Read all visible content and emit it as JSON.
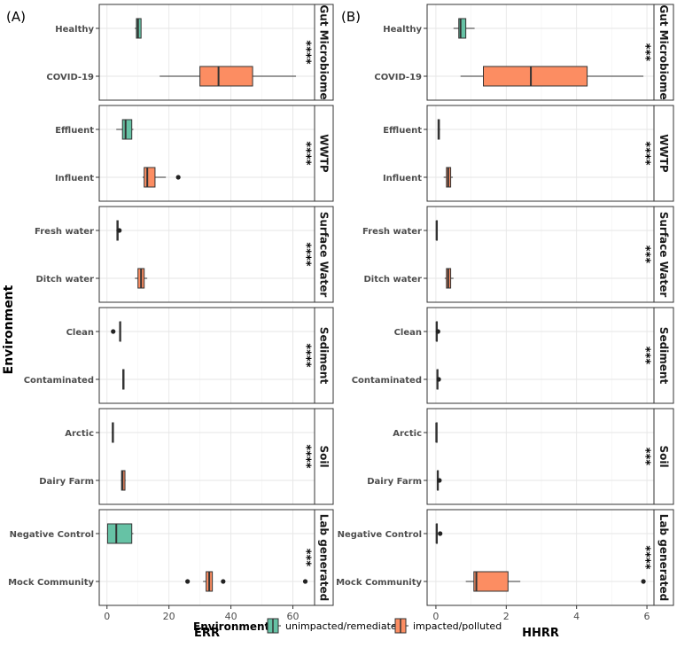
{
  "chart_data": {
    "type": "boxplot",
    "layout": "two faceted horizontal box-plot panels, environments stacked vertically",
    "y_axis_title": "Environment",
    "colors": {
      "unimpacted": "#66c2a5",
      "impacted": "#fc8d62"
    },
    "legend": {
      "title": "Environment",
      "items": [
        {
          "key": "unimpacted",
          "label": "unimpacted/remediated",
          "color": "#66c2a5"
        },
        {
          "key": "impacted",
          "label": "impacted/polluted",
          "color": "#fc8d62"
        }
      ]
    },
    "panels": [
      {
        "label": "(A)",
        "xlabel": "ERR",
        "xlim": [
          -2.5,
          67
        ],
        "xticks": [
          0,
          20,
          40,
          60
        ],
        "xtick_labels": [
          "0",
          "20",
          "40",
          "60"
        ],
        "facets": [
          {
            "strip": "Gut Microbiome",
            "significance": "****",
            "groups": [
              {
                "category": "Healthy",
                "status": "unimpacted",
                "whisker_low": 9,
                "q1": 9.5,
                "median": 10,
                "q3": 11,
                "whisker_high": 11,
                "outliers": []
              },
              {
                "category": "COVID-19",
                "status": "impacted",
                "whisker_low": 17,
                "q1": 30,
                "median": 36,
                "q3": 47,
                "whisker_high": 61,
                "outliers": []
              }
            ]
          },
          {
            "strip": "WWTP",
            "significance": "****",
            "groups": [
              {
                "category": "Effluent",
                "status": "unimpacted",
                "whisker_low": 3,
                "q1": 5,
                "median": 6,
                "q3": 8,
                "whisker_high": 8.5,
                "outliers": []
              },
              {
                "category": "Influent",
                "status": "impacted",
                "whisker_low": 11.5,
                "q1": 12,
                "median": 13,
                "q3": 15.5,
                "whisker_high": 19,
                "outliers": [
                  23
                ]
              }
            ]
          },
          {
            "strip": "Surface Water",
            "significance": "****",
            "groups": [
              {
                "category": "Fresh water",
                "status": "unimpacted",
                "whisker_low": 3,
                "q1": 3.2,
                "median": 3.4,
                "q3": 3.6,
                "whisker_high": 3.8,
                "outliers": [
                  4
                ]
              },
              {
                "category": "Ditch water",
                "status": "impacted",
                "whisker_low": 9,
                "q1": 10,
                "median": 11,
                "q3": 12,
                "whisker_high": 13,
                "outliers": []
              }
            ]
          },
          {
            "strip": "Sediment",
            "significance": "****",
            "groups": [
              {
                "category": "Clean",
                "status": "unimpacted",
                "whisker_low": 4,
                "q1": 4.1,
                "median": 4.2,
                "q3": 4.3,
                "whisker_high": 4.4,
                "outliers": [
                  2
                ]
              },
              {
                "category": "Contaminated",
                "status": "impacted",
                "whisker_low": 5,
                "q1": 5.1,
                "median": 5.3,
                "q3": 5.5,
                "whisker_high": 5.6,
                "outliers": []
              }
            ]
          },
          {
            "strip": "Soil",
            "significance": "****",
            "groups": [
              {
                "category": "Arctic",
                "status": "unimpacted",
                "whisker_low": 1.5,
                "q1": 1.7,
                "median": 1.9,
                "q3": 2.1,
                "whisker_high": 2.2,
                "outliers": []
              },
              {
                "category": "Dairy Farm",
                "status": "impacted",
                "whisker_low": 4.5,
                "q1": 4.7,
                "median": 5,
                "q3": 5.8,
                "whisker_high": 6,
                "outliers": []
              }
            ]
          },
          {
            "strip": "Lab generated",
            "significance": "***",
            "groups": [
              {
                "category": "Negative Control",
                "status": "unimpacted",
                "whisker_low": 0,
                "q1": 0.2,
                "median": 3,
                "q3": 8,
                "whisker_high": 8.5,
                "outliers": []
              },
              {
                "category": "Mock Community",
                "status": "impacted",
                "whisker_low": 31,
                "q1": 32,
                "median": 33,
                "q3": 34,
                "whisker_high": 34,
                "outliers": [
                  26,
                  37.5,
                  64
                ]
              }
            ]
          }
        ]
      },
      {
        "label": "(B)",
        "xlabel": "HHRR",
        "xlim": [
          -0.25,
          6.2
        ],
        "xticks": [
          0,
          2,
          4,
          6
        ],
        "xtick_labels": [
          "0",
          "2",
          "4",
          "6"
        ],
        "facets": [
          {
            "strip": "Gut Microbiome",
            "significance": "***",
            "groups": [
              {
                "category": "Healthy",
                "status": "unimpacted",
                "whisker_low": 0.5,
                "q1": 0.65,
                "median": 0.7,
                "q3": 0.85,
                "whisker_high": 1.1,
                "outliers": []
              },
              {
                "category": "COVID-19",
                "status": "impacted",
                "whisker_low": 0.7,
                "q1": 1.35,
                "median": 2.7,
                "q3": 4.3,
                "whisker_high": 5.9,
                "outliers": []
              }
            ]
          },
          {
            "strip": "WWTP",
            "significance": "****",
            "groups": [
              {
                "category": "Effluent",
                "status": "unimpacted",
                "whisker_low": 0.05,
                "q1": 0.06,
                "median": 0.08,
                "q3": 0.1,
                "whisker_high": 0.12,
                "outliers": []
              },
              {
                "category": "Influent",
                "status": "impacted",
                "whisker_low": 0.22,
                "q1": 0.3,
                "median": 0.35,
                "q3": 0.42,
                "whisker_high": 0.48,
                "outliers": []
              }
            ]
          },
          {
            "strip": "Surface Water",
            "significance": "***",
            "groups": [
              {
                "category": "Fresh water",
                "status": "unimpacted",
                "whisker_low": 0,
                "q1": 0.01,
                "median": 0.02,
                "q3": 0.03,
                "whisker_high": 0.04,
                "outliers": []
              },
              {
                "category": "Ditch water",
                "status": "impacted",
                "whisker_low": 0.25,
                "q1": 0.3,
                "median": 0.35,
                "q3": 0.42,
                "whisker_high": 0.5,
                "outliers": []
              }
            ]
          },
          {
            "strip": "Sediment",
            "significance": "***",
            "groups": [
              {
                "category": "Clean",
                "status": "unimpacted",
                "whisker_low": 0,
                "q1": 0.01,
                "median": 0.02,
                "q3": 0.03,
                "whisker_high": 0.04,
                "outliers": [
                  0.06
                ]
              },
              {
                "category": "Contaminated",
                "status": "impacted",
                "whisker_low": 0.02,
                "q1": 0.03,
                "median": 0.04,
                "q3": 0.05,
                "whisker_high": 0.06,
                "outliers": [
                  0.08
                ]
              }
            ]
          },
          {
            "strip": "Soil",
            "significance": "***",
            "groups": [
              {
                "category": "Arctic",
                "status": "unimpacted",
                "whisker_low": 0,
                "q1": 0.005,
                "median": 0.01,
                "q3": 0.015,
                "whisker_high": 0.02,
                "outliers": []
              },
              {
                "category": "Dairy Farm",
                "status": "impacted",
                "whisker_low": 0.03,
                "q1": 0.04,
                "median": 0.05,
                "q3": 0.06,
                "whisker_high": 0.08,
                "outliers": [
                  0.1
                ]
              }
            ]
          },
          {
            "strip": "Lab generated",
            "significance": "****",
            "groups": [
              {
                "category": "Negative Control",
                "status": "unimpacted",
                "whisker_low": 0,
                "q1": 0.01,
                "median": 0.02,
                "q3": 0.03,
                "whisker_high": 0.04,
                "outliers": [
                  0.12
                ]
              },
              {
                "category": "Mock Community",
                "status": "impacted",
                "whisker_low": 0.85,
                "q1": 1.08,
                "median": 1.15,
                "q3": 2.05,
                "whisker_high": 2.4,
                "outliers": [
                  5.9
                ]
              }
            ]
          }
        ]
      }
    ]
  }
}
